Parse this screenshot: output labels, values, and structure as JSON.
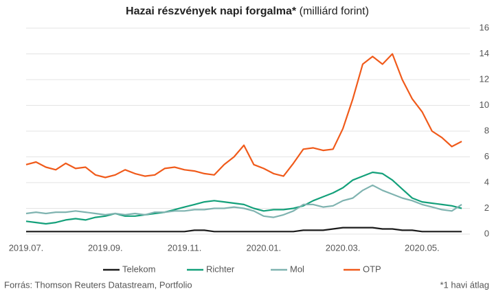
{
  "chart_data": {
    "type": "line",
    "title": "Hazai részvények napi forgalma*",
    "title_unit": "(milliárd forint)",
    "source": "Forrás: Thomson Reuters Datastream, Portfolio",
    "note": "*1 havi átlag",
    "categories": [
      "2019.07.",
      null,
      null,
      null,
      null,
      null,
      null,
      null,
      "2019.09.",
      null,
      null,
      null,
      null,
      null,
      null,
      null,
      "2019.11.",
      null,
      null,
      null,
      null,
      null,
      null,
      null,
      "2020.01.",
      null,
      null,
      null,
      null,
      null,
      null,
      null,
      "2020.03.",
      null,
      null,
      null,
      null,
      null,
      null,
      null,
      "2020.05.",
      null,
      null,
      null,
      null
    ],
    "ylim": [
      0,
      16
    ],
    "yticks": [
      0,
      2,
      4,
      6,
      8,
      10,
      12,
      14,
      16
    ],
    "grid": true,
    "legend": "bottom",
    "series": [
      {
        "name": "Telekom",
        "color": "#1a1a1a",
        "values": [
          0.2,
          0.2,
          0.2,
          0.2,
          0.2,
          0.2,
          0.2,
          0.2,
          0.2,
          0.2,
          0.2,
          0.2,
          0.2,
          0.2,
          0.2,
          0.2,
          0.2,
          0.3,
          0.3,
          0.2,
          0.2,
          0.2,
          0.2,
          0.2,
          0.2,
          0.2,
          0.2,
          0.2,
          0.3,
          0.3,
          0.3,
          0.4,
          0.5,
          0.5,
          0.5,
          0.5,
          0.4,
          0.4,
          0.3,
          0.3,
          0.2,
          0.2,
          0.2,
          0.2,
          0.2
        ]
      },
      {
        "name": "Richter",
        "color": "#13a07a",
        "values": [
          1.0,
          0.9,
          0.8,
          0.9,
          1.1,
          1.2,
          1.1,
          1.3,
          1.4,
          1.6,
          1.4,
          1.4,
          1.5,
          1.6,
          1.7,
          1.9,
          2.1,
          2.3,
          2.5,
          2.6,
          2.5,
          2.4,
          2.3,
          2.0,
          1.8,
          1.9,
          1.9,
          2.0,
          2.2,
          2.6,
          2.9,
          3.2,
          3.6,
          4.2,
          4.5,
          4.8,
          4.7,
          4.2,
          3.5,
          2.8,
          2.5,
          2.4,
          2.3,
          2.2,
          2.0
        ]
      },
      {
        "name": "Mol",
        "color": "#7fb3b0",
        "values": [
          1.6,
          1.7,
          1.6,
          1.7,
          1.7,
          1.8,
          1.7,
          1.6,
          1.5,
          1.6,
          1.5,
          1.6,
          1.5,
          1.7,
          1.7,
          1.8,
          1.8,
          1.9,
          1.9,
          2.0,
          2.0,
          2.1,
          2.0,
          1.8,
          1.4,
          1.3,
          1.5,
          1.8,
          2.3,
          2.3,
          2.1,
          2.2,
          2.6,
          2.8,
          3.4,
          3.8,
          3.4,
          3.1,
          2.8,
          2.6,
          2.3,
          2.1,
          1.9,
          1.8,
          2.3
        ]
      },
      {
        "name": "OTP",
        "color": "#f05a1a",
        "values": [
          5.4,
          5.6,
          5.2,
          5.0,
          5.5,
          5.1,
          5.2,
          4.6,
          4.4,
          4.6,
          5.0,
          4.7,
          4.5,
          4.6,
          5.1,
          5.2,
          5.0,
          4.9,
          4.7,
          4.6,
          5.4,
          6.0,
          6.9,
          5.4,
          5.1,
          4.7,
          4.5,
          5.5,
          6.6,
          6.7,
          6.5,
          6.6,
          8.2,
          10.5,
          13.2,
          13.8,
          13.2,
          14.0,
          12.0,
          10.5,
          9.5,
          8.0,
          7.5,
          6.8,
          7.2
        ]
      }
    ]
  }
}
